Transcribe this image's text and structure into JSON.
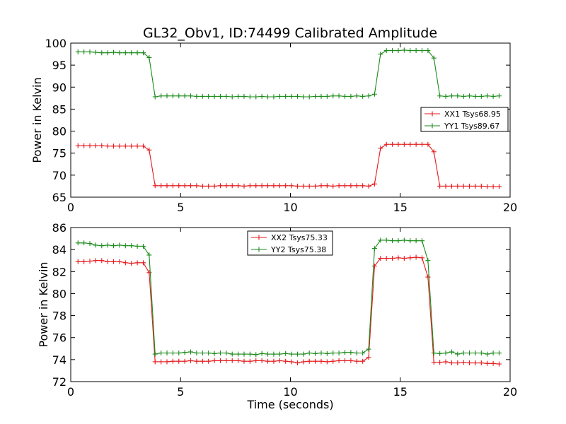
{
  "chart_data": [
    {
      "type": "line",
      "title": "GL32_Obv1, ID:74499 Calibrated Amplitude",
      "ylabel": "Power in Kelvin",
      "xlabel": "",
      "xlim": [
        0,
        20
      ],
      "ylim": [
        65,
        100
      ],
      "xticks": [
        0,
        5,
        10,
        15,
        20
      ],
      "yticks": [
        65,
        70,
        75,
        80,
        85,
        90,
        95,
        100
      ],
      "legend_position": "right",
      "x": [
        0.33,
        0.6,
        0.87,
        1.14,
        1.41,
        1.68,
        1.95,
        2.22,
        2.49,
        2.76,
        3.03,
        3.3,
        3.57,
        3.84,
        4.11,
        4.38,
        4.65,
        4.92,
        5.19,
        5.46,
        5.73,
        6.0,
        6.27,
        6.54,
        6.81,
        7.08,
        7.35,
        7.62,
        7.89,
        8.16,
        8.43,
        8.7,
        8.97,
        9.24,
        9.51,
        9.78,
        10.05,
        10.32,
        10.59,
        10.86,
        11.13,
        11.4,
        11.67,
        11.94,
        12.21,
        12.48,
        12.75,
        13.02,
        13.29,
        13.56,
        13.83,
        14.1,
        14.37,
        14.64,
        14.91,
        15.18,
        15.45,
        15.72,
        15.99,
        16.26,
        16.53,
        16.8,
        17.07,
        17.34,
        17.61,
        17.88,
        18.15,
        18.42,
        18.69,
        18.96,
        19.23,
        19.5
      ],
      "series": [
        {
          "name": "XX1 Tsys68.95",
          "color": "#e41a1c",
          "values": [
            76.7,
            76.7,
            76.7,
            76.7,
            76.7,
            76.6,
            76.6,
            76.6,
            76.6,
            76.6,
            76.6,
            76.6,
            75.7,
            67.6,
            67.6,
            67.6,
            67.6,
            67.6,
            67.6,
            67.6,
            67.6,
            67.5,
            67.5,
            67.5,
            67.6,
            67.6,
            67.6,
            67.6,
            67.5,
            67.6,
            67.6,
            67.6,
            67.6,
            67.6,
            67.6,
            67.6,
            67.6,
            67.5,
            67.5,
            67.5,
            67.5,
            67.6,
            67.6,
            67.5,
            67.6,
            67.6,
            67.6,
            67.6,
            67.6,
            67.5,
            68.0,
            76.1,
            77.0,
            77.0,
            77.0,
            77.0,
            77.0,
            77.0,
            77.0,
            77.0,
            75.3,
            67.5,
            67.5,
            67.5,
            67.5,
            67.5,
            67.5,
            67.5,
            67.5,
            67.4,
            67.4,
            67.4
          ]
        },
        {
          "name": "YY1 Tsys89.67",
          "color": "#1a8a1a",
          "values": [
            98.0,
            98.0,
            98.0,
            97.9,
            97.8,
            97.8,
            97.9,
            97.8,
            97.8,
            97.8,
            97.8,
            97.8,
            96.7,
            87.8,
            88.0,
            88.0,
            88.0,
            88.0,
            88.0,
            88.0,
            87.9,
            87.9,
            87.9,
            87.9,
            87.9,
            87.9,
            87.8,
            87.9,
            87.9,
            87.8,
            87.8,
            87.9,
            87.8,
            87.8,
            87.9,
            87.9,
            87.9,
            87.9,
            87.8,
            87.8,
            87.9,
            87.9,
            87.9,
            88.0,
            88.0,
            87.9,
            87.9,
            88.0,
            87.9,
            88.0,
            88.4,
            97.5,
            98.3,
            98.3,
            98.3,
            98.4,
            98.3,
            98.3,
            98.3,
            98.3,
            96.6,
            88.0,
            87.9,
            88.0,
            88.0,
            87.9,
            88.0,
            87.9,
            87.9,
            88.0,
            87.9,
            88.0
          ]
        }
      ]
    },
    {
      "type": "line",
      "title": "",
      "ylabel": "Power in Kelvin",
      "xlabel": "Time (seconds)",
      "xlim": [
        0,
        20
      ],
      "ylim": [
        72,
        86
      ],
      "xticks": [
        0,
        5,
        10,
        15,
        20
      ],
      "yticks": [
        72,
        74,
        76,
        78,
        80,
        82,
        84,
        86
      ],
      "legend_position": "top-center",
      "x": [
        0.33,
        0.6,
        0.87,
        1.14,
        1.41,
        1.68,
        1.95,
        2.22,
        2.49,
        2.76,
        3.03,
        3.3,
        3.57,
        3.84,
        4.11,
        4.38,
        4.65,
        4.92,
        5.19,
        5.46,
        5.73,
        6.0,
        6.27,
        6.54,
        6.81,
        7.08,
        7.35,
        7.62,
        7.89,
        8.16,
        8.43,
        8.7,
        8.97,
        9.24,
        9.51,
        9.78,
        10.05,
        10.32,
        10.59,
        10.86,
        11.13,
        11.4,
        11.67,
        11.94,
        12.21,
        12.48,
        12.75,
        13.02,
        13.29,
        13.56,
        13.83,
        14.1,
        14.37,
        14.64,
        14.91,
        15.18,
        15.45,
        15.72,
        15.99,
        16.26,
        16.53,
        16.8,
        17.07,
        17.34,
        17.61,
        17.88,
        18.15,
        18.42,
        18.69,
        18.96,
        19.23,
        19.5
      ],
      "series": [
        {
          "name": "XX2 Tsys75.33",
          "color": "#e41a1c",
          "values": [
            82.9,
            82.9,
            82.95,
            83.0,
            83.0,
            82.9,
            82.9,
            82.9,
            82.8,
            82.75,
            82.8,
            82.8,
            81.9,
            73.8,
            73.8,
            73.8,
            73.85,
            73.85,
            73.85,
            73.9,
            73.85,
            73.85,
            73.85,
            73.9,
            73.9,
            73.9,
            73.9,
            73.9,
            73.85,
            73.85,
            73.9,
            73.9,
            73.85,
            73.85,
            73.9,
            73.85,
            73.8,
            73.7,
            73.8,
            73.85,
            73.85,
            73.85,
            73.8,
            73.85,
            73.9,
            73.9,
            73.9,
            73.85,
            73.85,
            74.2,
            82.5,
            83.2,
            83.2,
            83.2,
            83.25,
            83.2,
            83.25,
            83.3,
            83.25,
            81.5,
            73.75,
            73.75,
            73.8,
            73.7,
            73.7,
            73.75,
            73.7,
            73.7,
            73.7,
            73.65,
            73.65,
            73.6
          ]
        },
        {
          "name": "YY2 Tsys75.38",
          "color": "#1a8a1a",
          "values": [
            84.6,
            84.6,
            84.55,
            84.4,
            84.35,
            84.4,
            84.35,
            84.4,
            84.35,
            84.35,
            84.3,
            84.3,
            83.5,
            74.5,
            74.6,
            74.6,
            74.6,
            74.6,
            74.65,
            74.7,
            74.6,
            74.6,
            74.6,
            74.55,
            74.6,
            74.6,
            74.5,
            74.5,
            74.5,
            74.5,
            74.45,
            74.55,
            74.5,
            74.5,
            74.5,
            74.55,
            74.5,
            74.5,
            74.5,
            74.6,
            74.55,
            74.6,
            74.55,
            74.6,
            74.6,
            74.65,
            74.65,
            74.6,
            74.6,
            74.95,
            84.1,
            84.85,
            84.85,
            84.8,
            84.8,
            84.85,
            84.8,
            84.8,
            84.8,
            83.0,
            74.6,
            74.55,
            74.6,
            74.7,
            74.5,
            74.6,
            74.6,
            74.6,
            74.6,
            74.5,
            74.6,
            74.6
          ]
        }
      ]
    }
  ]
}
